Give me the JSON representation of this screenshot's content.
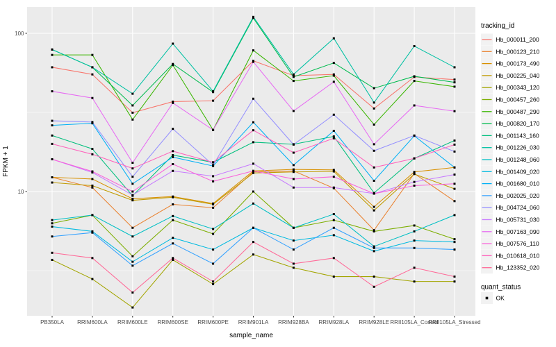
{
  "chart_data": {
    "type": "line",
    "title": "",
    "xlabel": "sample_name",
    "ylabel": "FPKM + 1",
    "y_scale": "log10",
    "legend_title": "tracking_id",
    "point_legend": {
      "title": "quant_status",
      "label": "OK"
    },
    "y_ticks": [
      {
        "label": "100",
        "value": 100
      },
      {
        "label": "10",
        "value": 10
      }
    ],
    "y_minor": [
      31.623,
      3.1623
    ],
    "ylim": [
      1.65,
      145
    ],
    "grid": true,
    "legend_position": "right",
    "categories": [
      "PB350LA",
      "RRIM600LA",
      "RRIM600LE",
      "RRIM600SE",
      "RRIM600PE",
      "RRIM901LA",
      "RRIM928BA",
      "RRIM928LA",
      "RRIM928LE",
      "RRII105LA_Control",
      "RRII105LA_Stressed"
    ],
    "series": [
      {
        "name": "Hb_000011_200",
        "color": "#F8766D",
        "values": [
          61,
          55,
          31.5,
          37,
          37.5,
          67,
          54,
          55,
          33.5,
          53,
          51
        ]
      },
      {
        "name": "Hb_000123_210",
        "color": "#EA8331",
        "values": [
          12.3,
          10.6,
          5.9,
          8.3,
          7.9,
          13.3,
          13.5,
          10.5,
          5.7,
          13.0,
          8.7
        ]
      },
      {
        "name": "Hb_000173_490",
        "color": "#D89000",
        "values": [
          12.3,
          12.0,
          9.0,
          9.3,
          8.4,
          13.5,
          13.8,
          13.7,
          8.0,
          13.3,
          14.2
        ]
      },
      {
        "name": "Hb_000225_040",
        "color": "#C09B00",
        "values": [
          11.4,
          10.9,
          8.8,
          9.2,
          8.3,
          13.1,
          13.3,
          13.4,
          7.6,
          12.9,
          10.4
        ]
      },
      {
        "name": "Hb_000343_120",
        "color": "#A3A500",
        "values": [
          3.7,
          2.8,
          1.85,
          3.7,
          2.6,
          4.0,
          3.3,
          2.9,
          2.9,
          2.7,
          2.7
        ]
      },
      {
        "name": "Hb_000457_260",
        "color": "#7CAE00",
        "values": [
          6.3,
          7.1,
          3.9,
          6.6,
          5.4,
          10.0,
          5.9,
          6.6,
          5.6,
          6.1,
          5.0
        ]
      },
      {
        "name": "Hb_000487_290",
        "color": "#39B600",
        "values": [
          73,
          73,
          28.5,
          63,
          24.5,
          78,
          50,
          54,
          26.5,
          50,
          46
        ]
      },
      {
        "name": "Hb_000820_170",
        "color": "#00BB4E",
        "values": [
          79,
          61,
          35,
          64,
          42.5,
          125,
          53,
          65,
          45,
          53.5,
          49
        ]
      },
      {
        "name": "Hb_001143_160",
        "color": "#00BF7D",
        "values": [
          22.6,
          18.6,
          9.4,
          17.0,
          15.3,
          20.5,
          19.9,
          22.3,
          9.8,
          16.2,
          21.0
        ]
      },
      {
        "name": "Hb_001226_030",
        "color": "#00C1A3",
        "values": [
          79,
          61,
          41.5,
          86,
          43,
          127,
          55,
          93,
          36.5,
          83,
          61
        ]
      },
      {
        "name": "Hb_001248_060",
        "color": "#00BFC4",
        "values": [
          6.6,
          7.1,
          5.2,
          7.0,
          5.8,
          8.4,
          5.9,
          7.2,
          4.5,
          5.6,
          7.1
        ]
      },
      {
        "name": "Hb_001409_020",
        "color": "#00BAE0",
        "values": [
          6.0,
          5.6,
          3.6,
          5.1,
          4.3,
          5.9,
          4.9,
          5.3,
          4.2,
          4.9,
          4.8
        ]
      },
      {
        "name": "Hb_001680_010",
        "color": "#00B0F6",
        "values": [
          26.2,
          27.0,
          11.2,
          16.5,
          14.5,
          27.4,
          14.7,
          24.2,
          11.7,
          22.5,
          14.2
        ]
      },
      {
        "name": "Hb_002025_020",
        "color": "#35A2FF",
        "values": [
          5.2,
          5.5,
          3.4,
          4.7,
          3.5,
          5.9,
          4.3,
          5.9,
          4.4,
          4.4,
          4.3
        ]
      },
      {
        "name": "Hb_004724_060",
        "color": "#9590FF",
        "values": [
          28,
          27.5,
          12.4,
          24.9,
          14.7,
          38.6,
          19.8,
          30.6,
          18.1,
          22.6,
          17.9
        ]
      },
      {
        "name": "Hb_005731_030",
        "color": "#C77CFF",
        "values": [
          16,
          13.2,
          9.5,
          13.5,
          12.5,
          15.0,
          10.6,
          10.6,
          9.7,
          11.5,
          12.8
        ]
      },
      {
        "name": "Hb_007163_090",
        "color": "#E76BF3",
        "values": [
          43,
          39,
          15.2,
          36.3,
          24.5,
          66,
          32.3,
          49.4,
          19.9,
          35,
          32.2
        ]
      },
      {
        "name": "Hb_007576_110",
        "color": "#FA62DB",
        "values": [
          16,
          13.4,
          10.0,
          14.9,
          11.6,
          13.5,
          12.0,
          12.4,
          9.7,
          10.9,
          11.2
        ]
      },
      {
        "name": "Hb_010618_010",
        "color": "#FF62BC",
        "values": [
          20,
          17.2,
          14.0,
          18.0,
          15.3,
          24.4,
          17.6,
          21.7,
          14.2,
          16.2,
          19.8
        ]
      },
      {
        "name": "Hb_123352_020",
        "color": "#FF6A98",
        "values": [
          4.1,
          3.8,
          2.3,
          3.8,
          2.7,
          4.8,
          3.5,
          3.8,
          2.5,
          3.3,
          2.9
        ]
      }
    ]
  },
  "colors": {
    "background": "#FFFFFF",
    "panel_bg": "#EBEBEB",
    "grid": "#FFFFFF",
    "tick": "#333333",
    "tick_label": "#4D4D4D",
    "axis_title": "#000000",
    "legend_key_bg": "#F2F2F2",
    "point": "#000000"
  }
}
